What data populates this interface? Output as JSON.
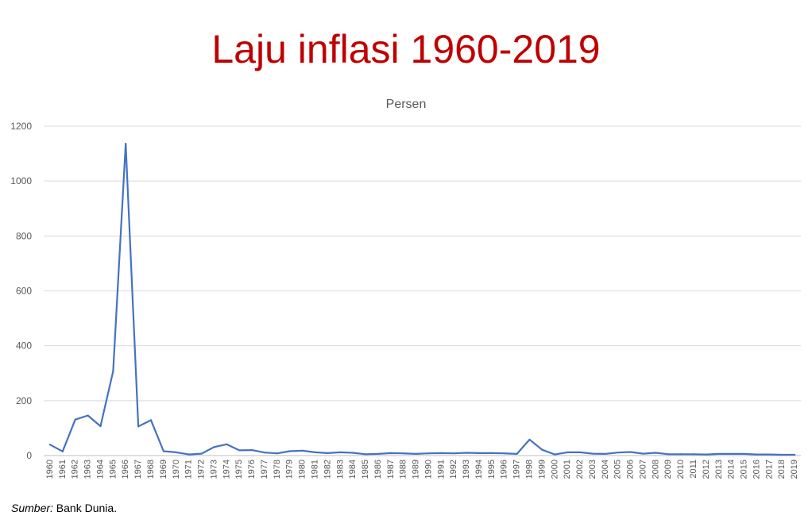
{
  "page": {
    "title": "Laju inflasi 1960-2019",
    "title_color": "#c00000",
    "source_label": "Sumber:",
    "source_text": " Bank Dunia."
  },
  "chart_data": {
    "type": "line",
    "title": "Persen",
    "xlabel": "",
    "ylabel": "",
    "ylim": [
      0,
      1200
    ],
    "y_ticks": [
      0,
      200,
      400,
      600,
      800,
      1000,
      1200
    ],
    "grid": true,
    "legend": "none",
    "line_color": "#4472c4",
    "categories": [
      "1960",
      "1961",
      "1962",
      "1963",
      "1964",
      "1965",
      "1966",
      "1967",
      "1968",
      "1969",
      "1970",
      "1971",
      "1972",
      "1973",
      "1974",
      "1975",
      "1976",
      "1977",
      "1978",
      "1979",
      "1980",
      "1981",
      "1982",
      "1983",
      "1984",
      "1985",
      "1986",
      "1987",
      "1988",
      "1989",
      "1990",
      "1991",
      "1992",
      "1993",
      "1994",
      "1995",
      "1996",
      "1997",
      "1998",
      "1999",
      "2000",
      "2001",
      "2002",
      "2003",
      "2004",
      "2005",
      "2006",
      "2007",
      "2008",
      "2009",
      "2010",
      "2011",
      "2012",
      "2013",
      "2014",
      "2015",
      "2016",
      "2017",
      "2018",
      "2019"
    ],
    "series": [
      {
        "values": [
          40,
          15,
          131,
          146,
          107,
          307,
          1136,
          106,
          129,
          16,
          12,
          4,
          7,
          31,
          41,
          19,
          20,
          11,
          8,
          16,
          18,
          12,
          9,
          12,
          10,
          5,
          6,
          9,
          8,
          6,
          8,
          9,
          8,
          10,
          9,
          9,
          8,
          6,
          58,
          21,
          4,
          12,
          12,
          7,
          6,
          11,
          13,
          7,
          10,
          5,
          5,
          5,
          4,
          6,
          6,
          6,
          4,
          4,
          3,
          3
        ]
      }
    ]
  }
}
